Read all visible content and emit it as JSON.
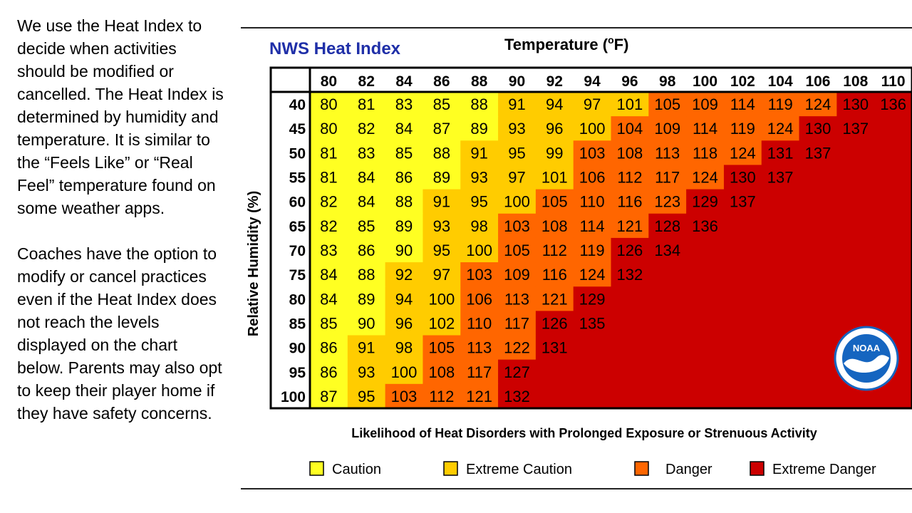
{
  "side_text": {
    "paragraph1": "We use the Heat Index to decide when activities should be modified or cancelled.  The Heat Index is determined by humidity and temperature.   It is similar to the “Feels Like” or “Real Feel” temperature found on some weather apps.",
    "paragraph2": "Coaches have the option to modify or cancel practices even if the Heat Index does not reach the levels displayed on the chart below.   Parents may also opt to keep their player home if they have safety concerns."
  },
  "chart_data": {
    "type": "heatmap",
    "title": "NWS Heat Index",
    "xlabel": "Temperature (°F)",
    "xlabel_parts": {
      "pre": "Temperature (",
      "sup": "o",
      "post": "F)"
    },
    "ylabel": "Relative Humidity (%)",
    "footer": "Likelihood of Heat Disorders with Prolonged Exposure or Strenuous Activity",
    "x": [
      "80",
      "82",
      "84",
      "86",
      "88",
      "90",
      "92",
      "94",
      "96",
      "98",
      "100",
      "102",
      "104",
      "106",
      "108",
      "110"
    ],
    "y": [
      "40",
      "45",
      "50",
      "55",
      "60",
      "65",
      "70",
      "75",
      "80",
      "85",
      "90",
      "95",
      "100"
    ],
    "values": [
      [
        80,
        81,
        83,
        85,
        88,
        91,
        94,
        97,
        101,
        105,
        109,
        114,
        119,
        124,
        130,
        136
      ],
      [
        80,
        82,
        84,
        87,
        89,
        93,
        96,
        100,
        104,
        109,
        114,
        119,
        124,
        130,
        137,
        null
      ],
      [
        81,
        83,
        85,
        88,
        91,
        95,
        99,
        103,
        108,
        113,
        118,
        124,
        131,
        137,
        null,
        null
      ],
      [
        81,
        84,
        86,
        89,
        93,
        97,
        101,
        106,
        112,
        117,
        124,
        130,
        137,
        null,
        null,
        null
      ],
      [
        82,
        84,
        88,
        91,
        95,
        100,
        105,
        110,
        116,
        123,
        129,
        137,
        null,
        null,
        null,
        null
      ],
      [
        82,
        85,
        89,
        93,
        98,
        103,
        108,
        114,
        121,
        128,
        136,
        null,
        null,
        null,
        null,
        null
      ],
      [
        83,
        86,
        90,
        95,
        100,
        105,
        112,
        119,
        126,
        134,
        null,
        null,
        null,
        null,
        null,
        null
      ],
      [
        84,
        88,
        92,
        97,
        103,
        109,
        116,
        124,
        132,
        null,
        null,
        null,
        null,
        null,
        null,
        null
      ],
      [
        84,
        89,
        94,
        100,
        106,
        113,
        121,
        129,
        null,
        null,
        null,
        null,
        null,
        null,
        null,
        null
      ],
      [
        85,
        90,
        96,
        102,
        110,
        117,
        126,
        135,
        null,
        null,
        null,
        null,
        null,
        null,
        null,
        null
      ],
      [
        86,
        91,
        98,
        105,
        113,
        122,
        131,
        null,
        null,
        null,
        null,
        null,
        null,
        null,
        null,
        null
      ],
      [
        86,
        93,
        100,
        108,
        117,
        127,
        null,
        null,
        null,
        null,
        null,
        null,
        null,
        null,
        null,
        null
      ],
      [
        87,
        95,
        103,
        112,
        121,
        132,
        null,
        null,
        null,
        null,
        null,
        null,
        null,
        null,
        null,
        null
      ]
    ],
    "categories": [
      {
        "name": "Caution",
        "min": 80,
        "max": 90,
        "color": "#ffff22"
      },
      {
        "name": "Extreme Caution",
        "min": 91,
        "max": 102,
        "color": "#ffcc00"
      },
      {
        "name": "Danger",
        "min": 103,
        "max": 125,
        "color": "#ff6600"
      },
      {
        "name": "Extreme Danger",
        "min": 126,
        "max": 999,
        "color": "#cc0000"
      }
    ],
    "logo_text": "NOAA"
  }
}
